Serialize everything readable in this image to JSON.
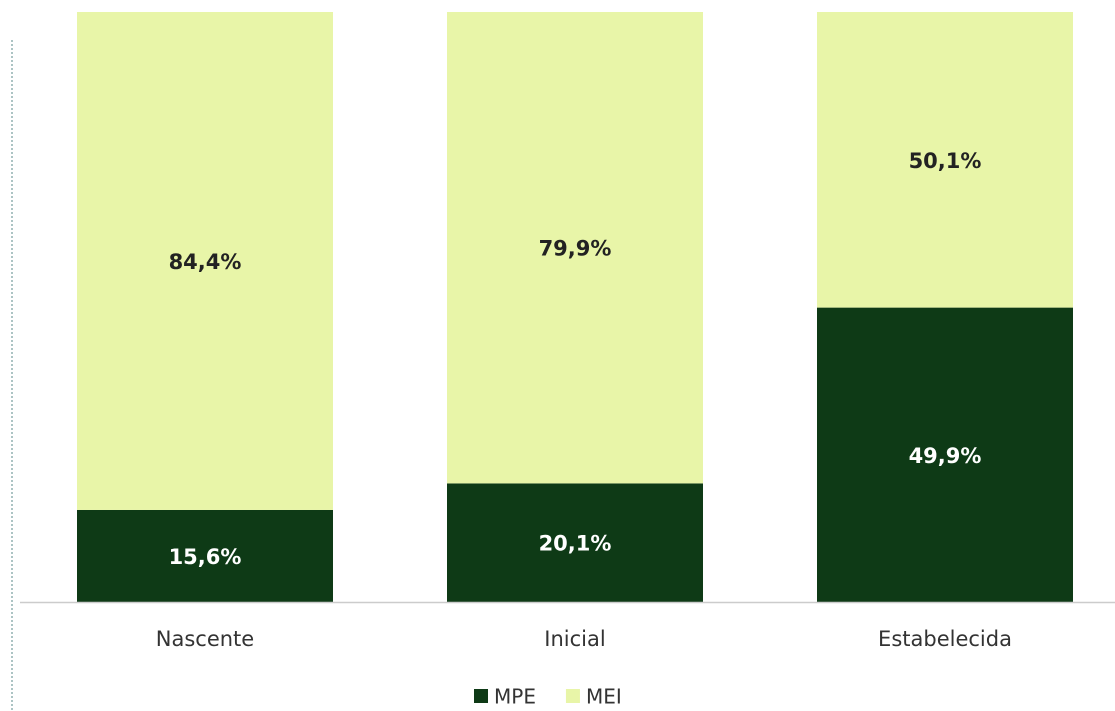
{
  "chart_data": {
    "type": "stacked_bar",
    "categories": [
      "Nascente",
      "Inicial",
      "Estabelecida"
    ],
    "series": [
      {
        "name": "MPE",
        "color": "#0e3a16",
        "values": [
          15.6,
          20.1,
          49.9
        ],
        "value_labels": [
          "15,6%",
          "20,1%",
          "49,9%"
        ]
      },
      {
        "name": "MEI",
        "color": "#e8f5a8",
        "values": [
          84.4,
          79.9,
          50.1
        ],
        "value_labels": [
          "84,4%",
          "79,9%",
          "50,1%"
        ]
      }
    ],
    "ylim": [
      0,
      100
    ],
    "legend": "bottom"
  }
}
